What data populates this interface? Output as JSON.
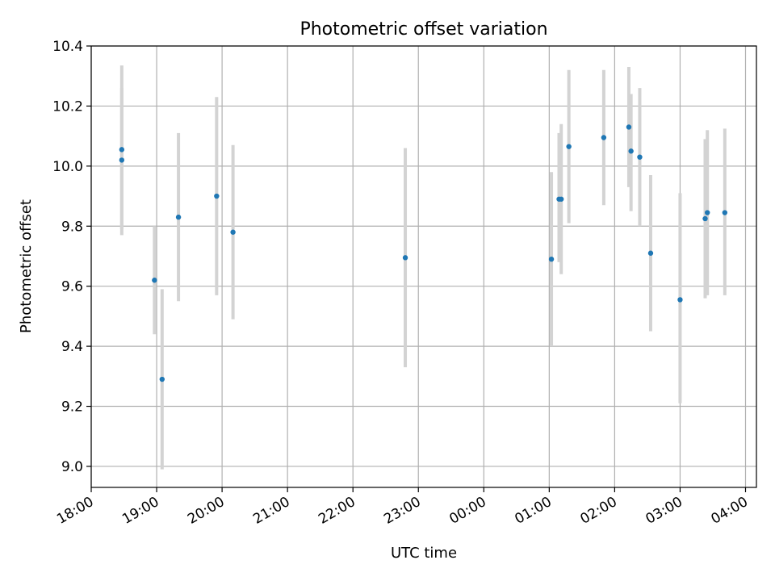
{
  "chart_data": {
    "type": "scatter",
    "title": "Photometric offset variation",
    "xlabel": "UTC time",
    "ylabel": "Photometric offset",
    "grid": true,
    "x_axis_type": "time",
    "xlim": [
      "18:00",
      "04:10"
    ],
    "ylim": [
      8.93,
      10.4
    ],
    "xticks": [
      "18:00",
      "19:00",
      "20:00",
      "21:00",
      "22:00",
      "23:00",
      "00:00",
      "01:00",
      "02:00",
      "03:00",
      "04:00"
    ],
    "yticks": [
      9.0,
      9.2,
      9.4,
      9.6,
      9.8,
      10.0,
      10.2,
      10.4
    ],
    "yticklabels": [
      "9.0",
      "9.2",
      "9.4",
      "9.6",
      "9.8",
      "10.0",
      "10.2",
      "10.4"
    ],
    "colors": {
      "point": "#1f77b4",
      "errorbar": "#d3d3d3",
      "grid": "#b0b0b0"
    },
    "points": [
      {
        "x": "18:28",
        "y": 10.055,
        "ymin": 9.77,
        "ymax": 10.335
      },
      {
        "x": "18:28",
        "y": 10.02,
        "ymin": 9.79,
        "ymax": 10.26
      },
      {
        "x": "18:58",
        "y": 9.62,
        "ymin": 9.44,
        "ymax": 9.8
      },
      {
        "x": "19:05",
        "y": 9.29,
        "ymin": 8.99,
        "ymax": 9.59
      },
      {
        "x": "19:20",
        "y": 9.83,
        "ymin": 9.55,
        "ymax": 10.11
      },
      {
        "x": "19:55",
        "y": 9.9,
        "ymin": 9.57,
        "ymax": 10.23
      },
      {
        "x": "20:10",
        "y": 9.78,
        "ymin": 9.49,
        "ymax": 10.07
      },
      {
        "x": "22:48",
        "y": 9.695,
        "ymin": 9.33,
        "ymax": 10.06
      },
      {
        "x": "01:02",
        "y": 9.69,
        "ymin": 9.4,
        "ymax": 9.98
      },
      {
        "x": "01:09",
        "y": 9.89,
        "ymin": 9.68,
        "ymax": 10.11
      },
      {
        "x": "01:11",
        "y": 9.89,
        "ymin": 9.64,
        "ymax": 10.14
      },
      {
        "x": "01:18",
        "y": 10.065,
        "ymin": 9.81,
        "ymax": 10.32
      },
      {
        "x": "01:50",
        "y": 10.095,
        "ymin": 9.87,
        "ymax": 10.32
      },
      {
        "x": "02:13",
        "y": 10.13,
        "ymin": 9.93,
        "ymax": 10.33
      },
      {
        "x": "02:15",
        "y": 10.05,
        "ymin": 9.85,
        "ymax": 10.24
      },
      {
        "x": "02:23",
        "y": 10.03,
        "ymin": 9.8,
        "ymax": 10.26
      },
      {
        "x": "02:33",
        "y": 9.71,
        "ymin": 9.45,
        "ymax": 9.97
      },
      {
        "x": "03:00",
        "y": 9.555,
        "ymin": 9.21,
        "ymax": 9.91
      },
      {
        "x": "03:23",
        "y": 9.825,
        "ymin": 9.56,
        "ymax": 10.09
      },
      {
        "x": "03:25",
        "y": 9.845,
        "ymin": 9.57,
        "ymax": 10.12
      },
      {
        "x": "03:41",
        "y": 9.845,
        "ymin": 9.57,
        "ymax": 10.125
      }
    ]
  }
}
